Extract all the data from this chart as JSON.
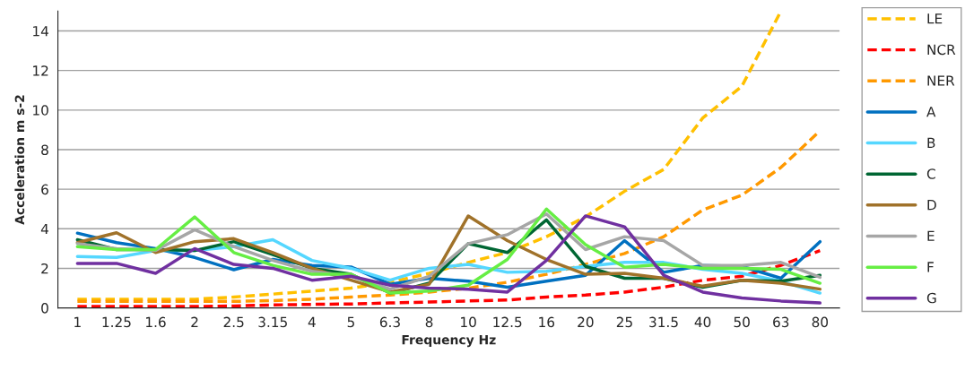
{
  "chart_data": {
    "type": "line",
    "xlabel": "Frequency Hz",
    "ylabel": "Acceleration m s-2",
    "categories": [
      "1",
      "1.25",
      "1.6",
      "2",
      "2.5",
      "3.15",
      "4",
      "5",
      "6.3",
      "8",
      "10",
      "12.5",
      "16",
      "20",
      "25",
      "31.5",
      "40",
      "50",
      "63",
      "80"
    ],
    "ylim": [
      0,
      15
    ],
    "yticks": [
      0,
      2,
      4,
      6,
      8,
      10,
      12,
      14
    ],
    "grid": "y",
    "legend": "right",
    "series": [
      {
        "name": "LE",
        "color": "#ffc000",
        "line_style": "dashed",
        "values": [
          0.44,
          0.44,
          0.44,
          0.44,
          0.55,
          0.7,
          0.85,
          1.0,
          1.3,
          1.75,
          2.3,
          2.8,
          3.6,
          4.6,
          5.9,
          7.0,
          9.6,
          11.2,
          15.0,
          null
        ]
      },
      {
        "name": "NCR",
        "color": "#ff0000",
        "line_style": "dashed",
        "values": [
          0.07,
          0.07,
          0.07,
          0.07,
          0.1,
          0.15,
          0.18,
          0.2,
          0.25,
          0.3,
          0.35,
          0.4,
          0.55,
          0.65,
          0.8,
          1.05,
          1.4,
          1.6,
          2.15,
          2.9
        ]
      },
      {
        "name": "NER",
        "color": "#ff9900",
        "line_style": "dashed",
        "values": [
          0.33,
          0.33,
          0.33,
          0.33,
          0.33,
          0.37,
          0.44,
          0.55,
          0.65,
          0.8,
          1.0,
          1.3,
          1.7,
          2.2,
          2.75,
          3.6,
          4.95,
          5.7,
          7.1,
          8.95
        ]
      },
      {
        "name": "A",
        "color": "#0070c0",
        "line_style": "solid",
        "values": [
          3.78,
          3.3,
          3.0,
          2.55,
          1.93,
          2.45,
          2.15,
          2.07,
          1.2,
          1.5,
          1.35,
          1.05,
          1.35,
          1.65,
          3.4,
          1.8,
          2.15,
          2.1,
          1.5,
          3.35
        ]
      },
      {
        "name": "B",
        "color": "#55d7ff",
        "line_style": "solid",
        "values": [
          2.6,
          2.55,
          2.9,
          2.9,
          3.1,
          3.45,
          2.4,
          2.0,
          1.4,
          2.0,
          2.2,
          1.8,
          1.85,
          2.1,
          2.3,
          2.3,
          1.95,
          1.75,
          1.35,
          0.75
        ]
      },
      {
        "name": "C",
        "color": "#006633",
        "line_style": "solid",
        "values": [
          3.45,
          2.95,
          2.95,
          2.9,
          3.35,
          2.7,
          2.0,
          1.7,
          0.75,
          1.25,
          3.25,
          2.8,
          4.45,
          2.1,
          1.5,
          1.5,
          1.05,
          1.4,
          1.35,
          1.65
        ]
      },
      {
        "name": "D",
        "color": "#a0722a",
        "line_style": "solid",
        "values": [
          3.3,
          3.8,
          2.8,
          3.35,
          3.5,
          2.8,
          2.0,
          1.4,
          0.8,
          1.2,
          4.65,
          3.4,
          2.45,
          1.7,
          1.75,
          1.5,
          1.1,
          1.4,
          1.25,
          0.95
        ]
      },
      {
        "name": "E",
        "color": "#a6a6a6",
        "line_style": "solid",
        "values": [
          3.25,
          3.0,
          2.9,
          3.95,
          3.1,
          2.4,
          1.85,
          1.6,
          0.95,
          1.6,
          3.25,
          3.7,
          4.75,
          2.95,
          3.6,
          3.4,
          2.15,
          2.15,
          2.3,
          1.55
        ]
      },
      {
        "name": "F",
        "color": "#66ee44",
        "line_style": "solid",
        "values": [
          3.1,
          2.95,
          2.95,
          4.6,
          2.8,
          2.15,
          1.7,
          1.7,
          0.75,
          0.85,
          1.15,
          2.45,
          5.0,
          3.2,
          2.05,
          2.2,
          2.0,
          2.0,
          1.95,
          1.25
        ]
      },
      {
        "name": "G",
        "color": "#7030a0",
        "line_style": "solid",
        "values": [
          2.25,
          2.25,
          1.75,
          3.0,
          2.2,
          2.0,
          1.4,
          1.6,
          1.15,
          1.0,
          0.95,
          0.8,
          2.4,
          4.65,
          4.1,
          1.65,
          0.8,
          0.5,
          0.35,
          0.25
        ]
      }
    ]
  }
}
